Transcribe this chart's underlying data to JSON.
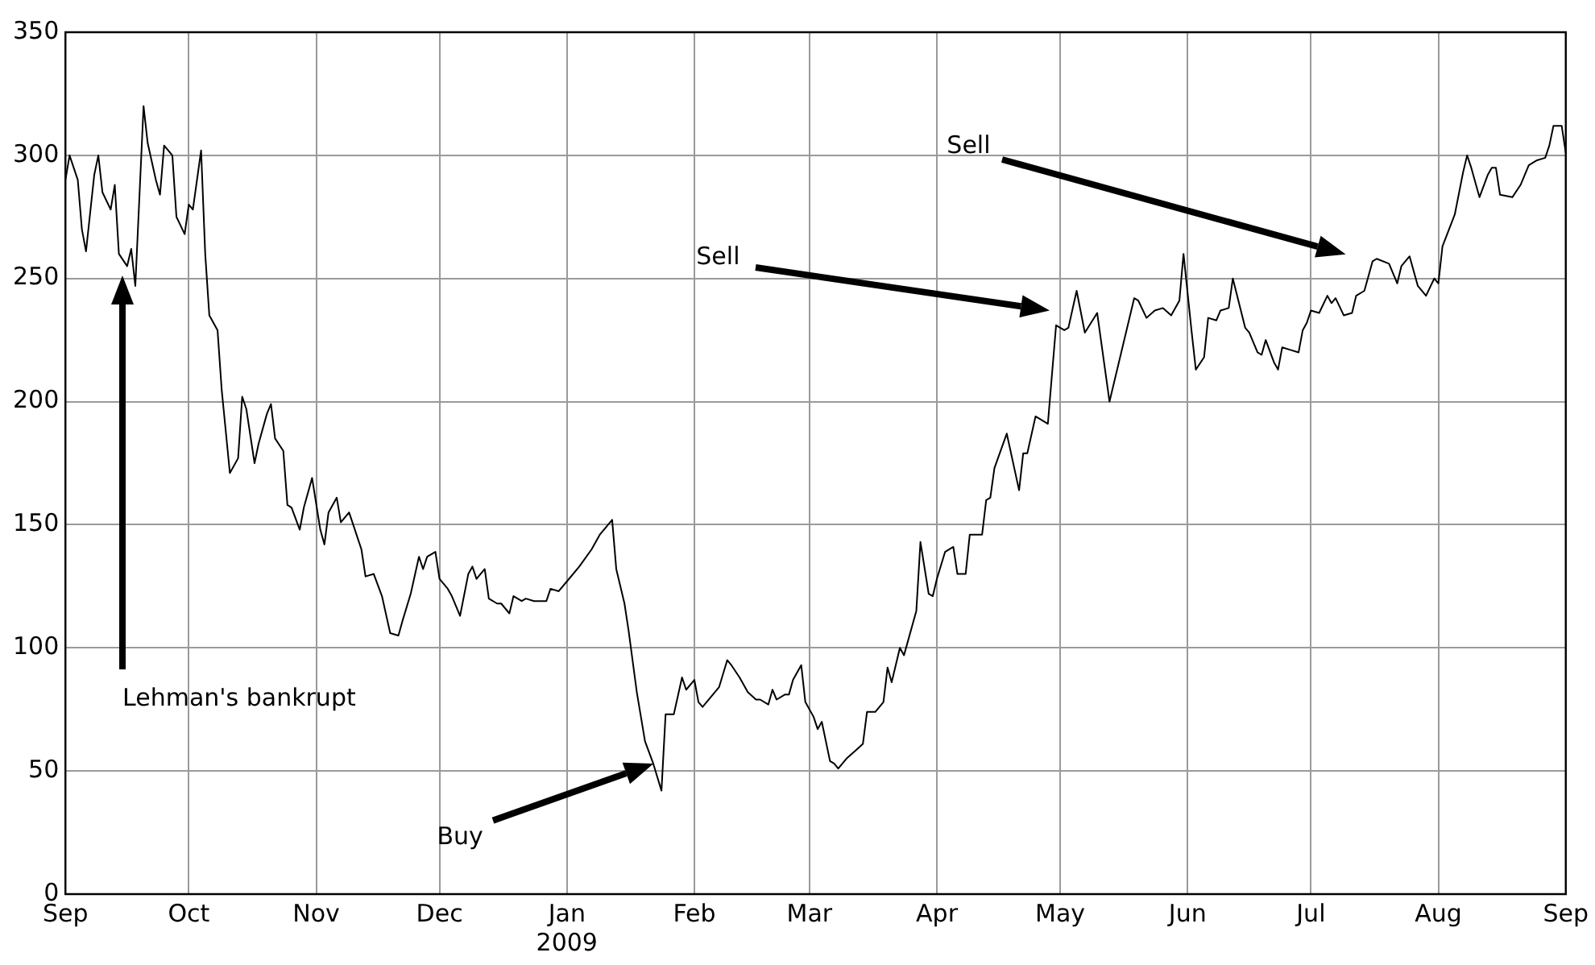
{
  "chart_data": {
    "type": "line",
    "x": [
      "2008-09-01",
      "2008-09-02",
      "2008-09-04",
      "2008-09-05",
      "2008-09-06",
      "2008-09-08",
      "2008-09-09",
      "2008-09-10",
      "2008-09-12",
      "2008-09-13",
      "2008-09-14",
      "2008-09-16",
      "2008-09-17",
      "2008-09-18",
      "2008-09-20",
      "2008-09-21",
      "2008-09-23",
      "2008-09-24",
      "2008-09-25",
      "2008-09-27",
      "2008-09-28",
      "2008-09-30",
      "2008-10-01",
      "2008-10-02",
      "2008-10-04",
      "2008-10-05",
      "2008-10-06",
      "2008-10-08",
      "2008-10-09",
      "2008-10-11",
      "2008-10-13",
      "2008-10-14",
      "2008-10-15",
      "2008-10-17",
      "2008-10-18",
      "2008-10-20",
      "2008-10-21",
      "2008-10-22",
      "2008-10-24",
      "2008-10-25",
      "2008-10-26",
      "2008-10-28",
      "2008-10-29",
      "2008-10-31",
      "2008-11-02",
      "2008-11-03",
      "2008-11-04",
      "2008-11-06",
      "2008-11-07",
      "2008-11-09",
      "2008-11-10",
      "2008-11-12",
      "2008-11-13",
      "2008-11-15",
      "2008-11-17",
      "2008-11-19",
      "2008-11-21",
      "2008-11-22",
      "2008-11-24",
      "2008-11-26",
      "2008-11-27",
      "2008-11-28",
      "2008-11-30",
      "2008-12-01",
      "2008-12-03",
      "2008-12-04",
      "2008-12-06",
      "2008-12-08",
      "2008-12-09",
      "2008-12-10",
      "2008-12-12",
      "2008-12-13",
      "2008-12-15",
      "2008-12-16",
      "2008-12-18",
      "2008-12-19",
      "2008-12-21",
      "2008-12-22",
      "2008-12-24",
      "2008-12-27",
      "2008-12-28",
      "2008-12-30",
      "2009-01-01",
      "2009-01-04",
      "2009-01-07",
      "2009-01-09",
      "2009-01-10",
      "2009-01-12",
      "2009-01-13",
      "2009-01-15",
      "2009-01-16",
      "2009-01-18",
      "2009-01-19",
      "2009-01-20",
      "2009-01-22",
      "2009-01-24",
      "2009-01-25",
      "2009-01-27",
      "2009-01-29",
      "2009-01-30",
      "2009-02-01",
      "2009-02-02",
      "2009-02-03",
      "2009-02-05",
      "2009-02-07",
      "2009-02-09",
      "2009-02-10",
      "2009-02-12",
      "2009-02-14",
      "2009-02-16",
      "2009-02-17",
      "2009-02-19",
      "2009-02-20",
      "2009-02-21",
      "2009-02-23",
      "2009-02-24",
      "2009-02-25",
      "2009-02-27",
      "2009-02-28",
      "2009-03-02",
      "2009-03-03",
      "2009-03-04",
      "2009-03-06",
      "2009-03-07",
      "2009-03-08",
      "2009-03-10",
      "2009-03-12",
      "2009-03-14",
      "2009-03-15",
      "2009-03-17",
      "2009-03-19",
      "2009-03-20",
      "2009-03-21",
      "2009-03-23",
      "2009-03-24",
      "2009-03-25",
      "2009-03-27",
      "2009-03-28",
      "2009-03-30",
      "2009-03-31",
      "2009-04-01",
      "2009-04-03",
      "2009-04-05",
      "2009-04-06",
      "2009-04-08",
      "2009-04-09",
      "2009-04-12",
      "2009-04-13",
      "2009-04-14",
      "2009-04-15",
      "2009-04-18",
      "2009-04-21",
      "2009-04-22",
      "2009-04-23",
      "2009-04-25",
      "2009-04-28",
      "2009-04-30",
      "2009-05-02",
      "2009-05-03",
      "2009-05-05",
      "2009-05-07",
      "2009-05-10",
      "2009-05-13",
      "2009-05-19",
      "2009-05-20",
      "2009-05-22",
      "2009-05-24",
      "2009-05-26",
      "2009-05-28",
      "2009-05-30",
      "2009-05-31",
      "2009-06-02",
      "2009-06-03",
      "2009-06-05",
      "2009-06-06",
      "2009-06-08",
      "2009-06-09",
      "2009-06-11",
      "2009-06-12",
      "2009-06-15",
      "2009-06-16",
      "2009-06-18",
      "2009-06-19",
      "2009-06-20",
      "2009-06-22",
      "2009-06-23",
      "2009-06-24",
      "2009-06-26",
      "2009-06-28",
      "2009-06-29",
      "2009-06-30",
      "2009-07-01",
      "2009-07-03",
      "2009-07-05",
      "2009-07-06",
      "2009-07-07",
      "2009-07-09",
      "2009-07-11",
      "2009-07-12",
      "2009-07-14",
      "2009-07-16",
      "2009-07-17",
      "2009-07-20",
      "2009-07-22",
      "2009-07-23",
      "2009-07-25",
      "2009-07-27",
      "2009-07-29",
      "2009-07-31",
      "2009-08-01",
      "2009-08-02",
      "2009-08-05",
      "2009-08-07",
      "2009-08-08",
      "2009-08-09",
      "2009-08-11",
      "2009-08-13",
      "2009-08-14",
      "2009-08-15",
      "2009-08-16",
      "2009-08-19",
      "2009-08-21",
      "2009-08-23",
      "2009-08-25",
      "2009-08-27",
      "2009-08-28",
      "2009-08-29",
      "2009-08-31",
      "2009-09-01"
    ],
    "series": [
      {
        "color": "#000000",
        "values": [
          290,
          300,
          290,
          270,
          261,
          292,
          300,
          285,
          278,
          288,
          260,
          255,
          262,
          247,
          320,
          305,
          290,
          284,
          304,
          300,
          275,
          268,
          280,
          278,
          302,
          260,
          235,
          229,
          205,
          171,
          177,
          202,
          197,
          175,
          183,
          195,
          199,
          185,
          180,
          158,
          157,
          148,
          157,
          169,
          148,
          142,
          155,
          161,
          151,
          155,
          150,
          140,
          129,
          130,
          121,
          106,
          105,
          111,
          122,
          137,
          132,
          137,
          139,
          128,
          124,
          121,
          113,
          130,
          133,
          128,
          132,
          120,
          118,
          118,
          114,
          121,
          119,
          120,
          119,
          119,
          124,
          123,
          127,
          133,
          140,
          146,
          148,
          152,
          132,
          118,
          107,
          82,
          72,
          62,
          53,
          42,
          73,
          73,
          88,
          83,
          87,
          78,
          76,
          80,
          84,
          95,
          93,
          88,
          82,
          79,
          79,
          77,
          83,
          79,
          81,
          81,
          87,
          93,
          78,
          72,
          67,
          70,
          54,
          53,
          51,
          55,
          58,
          61,
          74,
          74,
          78,
          92,
          86,
          100,
          97,
          103,
          115,
          143,
          122,
          121,
          128,
          139,
          141,
          130,
          130,
          146,
          146,
          160,
          161,
          173,
          187,
          164,
          179,
          179,
          194,
          191,
          231,
          229,
          230,
          245,
          228,
          236,
          200,
          242,
          241,
          234,
          237,
          238,
          235,
          241,
          260,
          228,
          213,
          218,
          234,
          233,
          237,
          238,
          250,
          230,
          228,
          220,
          219,
          225,
          216,
          213,
          222,
          221,
          220,
          229,
          232,
          237,
          236,
          243,
          240,
          242,
          235,
          236,
          243,
          245,
          257,
          258,
          256,
          248,
          255,
          259,
          247,
          243,
          250,
          248,
          263,
          276,
          293,
          300,
          295,
          283,
          292,
          295,
          295,
          284,
          283,
          288,
          296,
          298,
          299,
          304,
          312,
          312,
          301
        ]
      }
    ],
    "xlim": [
      "2008-09-01",
      "2009-09-01"
    ],
    "xticks": [
      {
        "value": "2008-09-01",
        "label": "Sep"
      },
      {
        "value": "2008-10-01",
        "label": "Oct"
      },
      {
        "value": "2008-11-01",
        "label": "Nov"
      },
      {
        "value": "2008-12-01",
        "label": "Dec"
      },
      {
        "value": "2009-01-01",
        "label": "Jan\n2009"
      },
      {
        "value": "2009-02-01",
        "label": "Feb"
      },
      {
        "value": "2009-03-01",
        "label": "Mar"
      },
      {
        "value": "2009-04-01",
        "label": "Apr"
      },
      {
        "value": "2009-05-01",
        "label": "May"
      },
      {
        "value": "2009-06-01",
        "label": "Jun"
      },
      {
        "value": "2009-07-01",
        "label": "Jul"
      },
      {
        "value": "2009-08-01",
        "label": "Aug"
      },
      {
        "value": "2009-09-01",
        "label": "Sep"
      }
    ],
    "ylim": [
      0,
      350
    ],
    "yticks": [
      0,
      50,
      100,
      150,
      200,
      250,
      300,
      350
    ],
    "grid": true,
    "legend": false,
    "annotations": [
      "Lehman's bankrupt",
      "Buy",
      "Sell",
      "Sell"
    ]
  }
}
